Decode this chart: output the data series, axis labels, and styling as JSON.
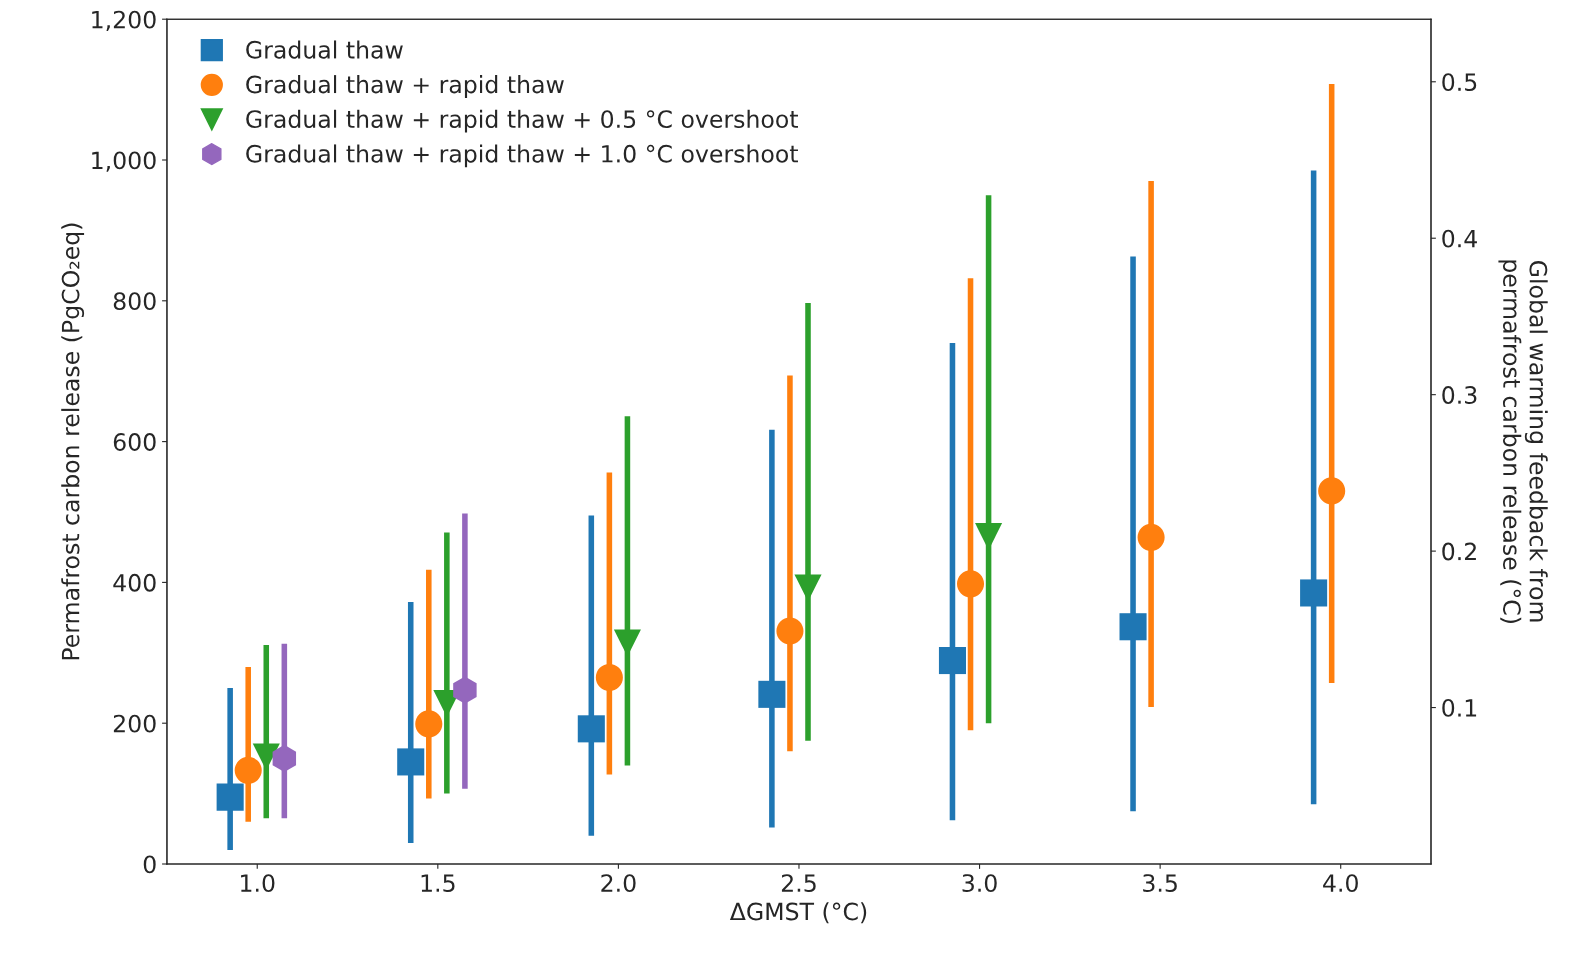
{
  "chart_data": {
    "type": "scatter",
    "xlabel": "ΔGMST (°C)",
    "ylabel": "Permafrost carbon release (PgCO₂eq)",
    "y2label": "Global warming feedback from\npermafrost carbon release (°C)",
    "xlim": [
      0.75,
      4.25
    ],
    "xticks": [
      {
        "value": 1,
        "label": "1.0"
      },
      {
        "value": 1.5,
        "label": "1.5"
      },
      {
        "value": 2,
        "label": "2.0"
      },
      {
        "value": 2.5,
        "label": "2.5"
      },
      {
        "value": 3,
        "label": "3.0"
      },
      {
        "value": 3.5,
        "label": "3.5"
      },
      {
        "value": 4,
        "label": "4.0"
      }
    ],
    "ylim": [
      0,
      1200
    ],
    "yticks": [
      0,
      200,
      400,
      600,
      800,
      {
        "value": 1000,
        "label": "1,000"
      },
      {
        "value": 1200,
        "label": "1,200"
      }
    ],
    "y2lim": [
      0,
      0.54
    ],
    "y2ticks": [
      0.1,
      0.2,
      0.3,
      0.4,
      0.5
    ],
    "legend": "top left",
    "grid": false,
    "series": [
      {
        "name": "Gradual thaw",
        "color": "#1f77b4",
        "marker": "square",
        "x": [
          0.925,
          1.425,
          1.925,
          2.425,
          2.925,
          3.425,
          3.925
        ],
        "values": [
          95,
          145,
          192,
          241,
          289,
          337,
          385
        ],
        "errors": [
          [
            20,
            250
          ],
          [
            30,
            372
          ],
          [
            40,
            495
          ],
          [
            52,
            617
          ],
          [
            62,
            740
          ],
          [
            75,
            863
          ],
          [
            85,
            985
          ]
        ]
      },
      {
        "name": "Gradual thaw + rapid thaw",
        "color": "#ff7f0e",
        "marker": "circle",
        "x": [
          0.975,
          1.475,
          1.975,
          2.475,
          2.975,
          3.475,
          3.975
        ],
        "values": [
          133,
          199,
          265,
          331,
          398,
          464,
          530
        ],
        "errors": [
          [
            60,
            280
          ],
          [
            93,
            418
          ],
          [
            127,
            556
          ],
          [
            160,
            694
          ],
          [
            190,
            832
          ],
          [
            223,
            970
          ],
          [
            257,
            1108
          ]
        ]
      },
      {
        "name": "Gradual thaw + rapid thaw + 0.5 °C overshoot",
        "color": "#2ca02c",
        "marker": "triangle_down",
        "x": [
          1.025,
          1.525,
          2.025,
          2.525,
          3.025
        ],
        "values": [
          152,
          228,
          314,
          392,
          465
        ],
        "errors": [
          [
            65,
            311
          ],
          [
            100,
            471
          ],
          [
            140,
            636
          ],
          [
            175,
            797
          ],
          [
            200,
            950
          ]
        ]
      },
      {
        "name": "Gradual thaw + rapid thaw + 1.0 °C overshoot",
        "color": "#9467bd",
        "x": [
          1.075,
          1.575
        ],
        "values": [
          150,
          247
        ],
        "errors": [
          [
            65,
            313
          ],
          [
            107,
            498
          ]
        ]
      }
    ]
  }
}
